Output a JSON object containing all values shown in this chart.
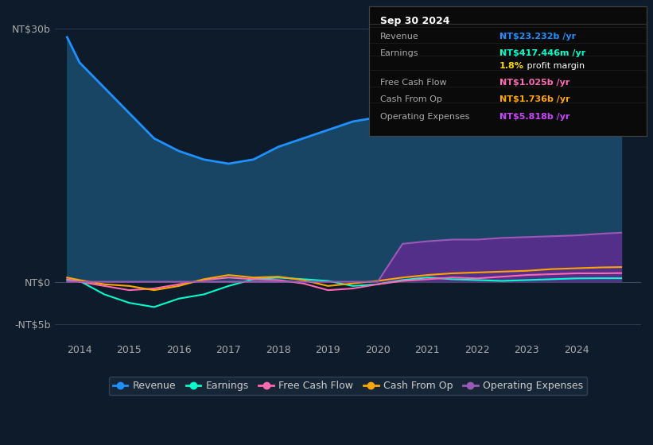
{
  "background_color": "#0d1b2a",
  "plot_bg_color": "#0d1b2a",
  "xlim": [
    2013.5,
    2025.3
  ],
  "ylim": [
    -7000000000.0,
    32000000000.0
  ],
  "yticks": [
    -5000000000.0,
    0,
    30000000000.0
  ],
  "ytick_labels": [
    "-NT$5b",
    "NT$0",
    "NT$30b"
  ],
  "xtick_years": [
    2014,
    2015,
    2016,
    2017,
    2018,
    2019,
    2020,
    2021,
    2022,
    2023,
    2024
  ],
  "revenue_color": "#1e90ff",
  "earnings_color": "#00ffcc",
  "fcf_color": "#ff69b4",
  "cashop_color": "#ffa500",
  "opex_color": "#9b59b6",
  "fill_revenue_color": "#1a4a6b",
  "fill_opex_color": "#5b2d8e",
  "grid_color": "#2a3a4a",
  "legend_bg": "#1a2a3a",
  "legend_border": "#3a4a5a",
  "info_box": {
    "date": "Sep 30 2024",
    "revenue_label": "Revenue",
    "revenue_val": "NT$23.232b",
    "earnings_label": "Earnings",
    "earnings_val": "NT$417.446m",
    "profit_margin": "1.8%",
    "fcf_label": "Free Cash Flow",
    "fcf_val": "NT$1.025b",
    "cashop_label": "Cash From Op",
    "cashop_val": "NT$1.736b",
    "opex_label": "Operating Expenses",
    "opex_val": "NT$5.818b"
  },
  "revenue_x": [
    2013.75,
    2014.0,
    2014.5,
    2015.0,
    2015.5,
    2016.0,
    2016.5,
    2017.0,
    2017.5,
    2018.0,
    2018.5,
    2019.0,
    2019.5,
    2020.0,
    2020.5,
    2021.0,
    2021.5,
    2022.0,
    2022.5,
    2023.0,
    2023.5,
    2024.0,
    2024.5,
    2024.9
  ],
  "revenue_y": [
    29000000000.0,
    26000000000.0,
    23000000000.0,
    20000000000.0,
    17000000000.0,
    15500000000.0,
    14500000000.0,
    14000000000.0,
    14500000000.0,
    16000000000.0,
    17000000000.0,
    18000000000.0,
    19000000000.0,
    19500000000.0,
    19000000000.0,
    19500000000.0,
    20000000000.0,
    19500000000.0,
    19000000000.0,
    19500000000.0,
    20000000000.0,
    21000000000.0,
    23000000000.0,
    23200000000.0
  ],
  "earnings_x": [
    2013.75,
    2014.0,
    2014.5,
    2015.0,
    2015.5,
    2016.0,
    2016.5,
    2017.0,
    2017.5,
    2018.0,
    2018.5,
    2019.0,
    2019.5,
    2020.0,
    2020.5,
    2021.0,
    2021.5,
    2022.0,
    2022.5,
    2023.0,
    2023.5,
    2024.0,
    2024.5,
    2024.9
  ],
  "earnings_y": [
    200000000.0,
    100000000.0,
    -1500000000.0,
    -2500000000.0,
    -3000000000.0,
    -2000000000.0,
    -1500000000.0,
    -500000000.0,
    300000000.0,
    500000000.0,
    300000000.0,
    100000000.0,
    -500000000.0,
    -300000000.0,
    200000000.0,
    500000000.0,
    300000000.0,
    200000000.0,
    100000000.0,
    200000000.0,
    300000000.0,
    400000000.0,
    420000000.0,
    417000000.0
  ],
  "fcf_x": [
    2013.75,
    2014.0,
    2014.5,
    2015.0,
    2015.5,
    2016.0,
    2016.5,
    2017.0,
    2017.5,
    2018.0,
    2018.5,
    2019.0,
    2019.5,
    2020.0,
    2020.5,
    2021.0,
    2021.5,
    2022.0,
    2022.5,
    2023.0,
    2023.5,
    2024.0,
    2024.5,
    2024.9
  ],
  "fcf_y": [
    300000000.0,
    0.0,
    -500000000.0,
    -1000000000.0,
    -800000000.0,
    -300000000.0,
    200000000.0,
    500000000.0,
    300000000.0,
    200000000.0,
    -200000000.0,
    -1000000000.0,
    -800000000.0,
    -300000000.0,
    100000000.0,
    300000000.0,
    500000000.0,
    400000000.0,
    600000000.0,
    800000000.0,
    900000000.0,
    1000000000.0,
    1000000000.0,
    1025000000.0
  ],
  "cashop_x": [
    2013.75,
    2014.0,
    2014.5,
    2015.0,
    2015.5,
    2016.0,
    2016.5,
    2017.0,
    2017.5,
    2018.0,
    2018.5,
    2019.0,
    2019.5,
    2020.0,
    2020.5,
    2021.0,
    2021.5,
    2022.0,
    2022.5,
    2023.0,
    2023.5,
    2024.0,
    2024.5,
    2024.9
  ],
  "cashop_y": [
    500000000.0,
    200000000.0,
    -300000000.0,
    -500000000.0,
    -1000000000.0,
    -500000000.0,
    300000000.0,
    800000000.0,
    500000000.0,
    600000000.0,
    200000000.0,
    -500000000.0,
    -200000000.0,
    100000000.0,
    500000000.0,
    800000000.0,
    1000000000.0,
    1100000000.0,
    1200000000.0,
    1300000000.0,
    1500000000.0,
    1600000000.0,
    1700000000.0,
    1736000000.0
  ],
  "opex_x": [
    2013.75,
    2014.0,
    2014.5,
    2015.0,
    2015.5,
    2016.0,
    2016.5,
    2017.0,
    2017.5,
    2018.0,
    2018.5,
    2019.0,
    2019.5,
    2020.0,
    2020.5,
    2021.0,
    2021.5,
    2022.0,
    2022.5,
    2023.0,
    2023.5,
    2024.0,
    2024.5,
    2024.9
  ],
  "opex_y": [
    0.0,
    0.0,
    0.0,
    0.0,
    0.0,
    0.0,
    0.0,
    0.0,
    0.0,
    0.0,
    0.0,
    0.0,
    0.0,
    0.0,
    4500000000.0,
    4800000000.0,
    5000000000.0,
    5000000000.0,
    5200000000.0,
    5300000000.0,
    5400000000.0,
    5500000000.0,
    5700000000.0,
    5818000000.0
  ]
}
